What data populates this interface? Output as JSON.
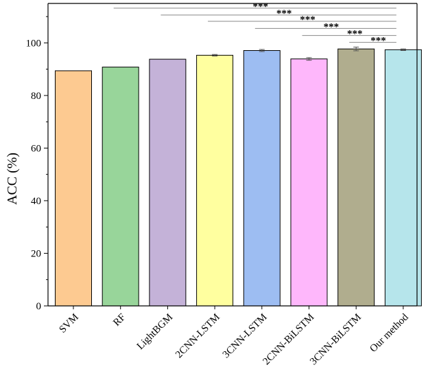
{
  "chart_data": {
    "type": "bar",
    "ylabel": "ACC (%)",
    "xlabel": "",
    "title": "",
    "ylim": [
      0,
      115
    ],
    "yticks": [
      0,
      20,
      40,
      60,
      80,
      100
    ],
    "grid": false,
    "categories": [
      "SVM",
      "RF",
      "LightBGM",
      "2CNN-LSTM",
      "3CNN-LSTM",
      "2CNN-BiLSTM",
      "3CNN-BiLSTM",
      "Our method"
    ],
    "values": [
      89.4,
      90.8,
      93.8,
      95.3,
      97.1,
      93.9,
      97.7,
      97.4
    ],
    "errors": [
      0,
      0,
      0,
      0.3,
      0.4,
      0.5,
      0.7,
      0.3
    ],
    "colors": [
      "#FDCA91",
      "#98D59A",
      "#C4B2D8",
      "#FFFF9F",
      "#9DBDF2",
      "#FEB7FB",
      "#B0AD8E",
      "#B6E5EB"
    ],
    "significance": [
      {
        "from": "SVM",
        "to": "Our method",
        "label": "***",
        "level": 118.0
      },
      {
        "from": "RF",
        "to": "Our method",
        "label": "***",
        "level": 113.2
      },
      {
        "from": "LightBGM",
        "to": "Our method",
        "label": "***",
        "level": 110.6
      },
      {
        "from": "2CNN-LSTM",
        "to": "Our method",
        "label": "***",
        "level": 108.2
      },
      {
        "from": "3CNN-LSTM",
        "to": "Our method",
        "label": "***",
        "level": 105.5
      },
      {
        "from": "2CNN-BiLSTM",
        "to": "Our method",
        "label": "***",
        "level": 102.8
      },
      {
        "from": "3CNN-BiLSTM",
        "to": "Our method",
        "label": "***",
        "level": 100.2
      }
    ]
  }
}
